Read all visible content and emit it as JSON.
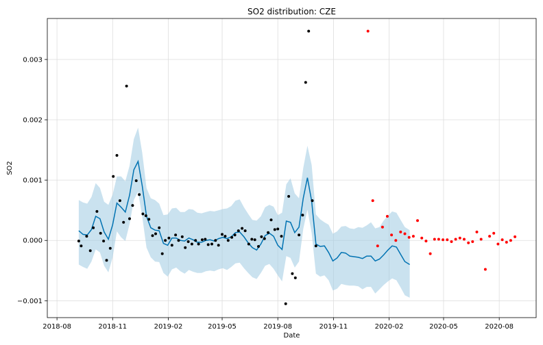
{
  "chart_data": {
    "type": "scatter",
    "title": "SO2 distribution: CZE",
    "xlabel": "Date",
    "ylabel": "SO2",
    "x_ticks": [
      "2018-08",
      "2018-11",
      "2019-02",
      "2019-05",
      "2019-08",
      "2019-11",
      "2020-02",
      "2020-05",
      "2020-08"
    ],
    "y_ticks": [
      "−0.001",
      "0.000",
      "0.001",
      "0.002",
      "0.003"
    ],
    "xlim": [
      "2018-07-16",
      "2020-10-01"
    ],
    "ylim": [
      -0.00128,
      0.00368
    ],
    "grid": true,
    "colors": {
      "observed": "#000000",
      "held_out": "#ff0000",
      "forecast": "#0072B2",
      "interval": "#9ecae1"
    },
    "series": [
      {
        "role": "observed",
        "points": [
          [
            "2018-09-06",
            -1e-05
          ],
          [
            "2018-09-10",
            -9e-05
          ],
          [
            "2018-09-19",
            7e-05
          ],
          [
            "2018-09-25",
            -0.00017
          ],
          [
            "2018-09-30",
            0.00021
          ],
          [
            "2018-10-06",
            0.00048
          ],
          [
            "2018-10-12",
            0.00012
          ],
          [
            "2018-10-17",
            -1e-05
          ],
          [
            "2018-10-22",
            -0.00033
          ],
          [
            "2018-10-28",
            -0.00013
          ],
          [
            "2018-11-02",
            0.00106
          ],
          [
            "2018-11-08",
            0.00141
          ],
          [
            "2018-11-13",
            0.00066
          ],
          [
            "2018-11-19",
            0.0003
          ],
          [
            "2018-11-24",
            0.00256
          ],
          [
            "2018-11-29",
            0.00036
          ],
          [
            "2018-12-04",
            0.00058
          ],
          [
            "2018-12-10",
            0.00099
          ],
          [
            "2018-12-15",
            0.00076
          ],
          [
            "2018-12-21",
            0.00044
          ],
          [
            "2018-12-26",
            0.00041
          ],
          [
            "2018-12-31",
            0.00035
          ],
          [
            "2019-01-06",
            8e-05
          ],
          [
            "2019-01-11",
            0.00011
          ],
          [
            "2019-01-17",
            0.00021
          ],
          [
            "2019-01-22",
            -0.00022
          ],
          [
            "2019-01-27",
            0.0
          ],
          [
            "2019-02-02",
            4e-05
          ],
          [
            "2019-02-07",
            -8e-05
          ],
          [
            "2019-02-13",
            9e-05
          ],
          [
            "2019-02-18",
            0.0
          ],
          [
            "2019-02-24",
            6e-05
          ],
          [
            "2019-03-01",
            -0.00012
          ],
          [
            "2019-03-06",
            -2e-05
          ],
          [
            "2019-03-12",
            -6e-05
          ],
          [
            "2019-03-18",
            0.0
          ],
          [
            "2019-03-23",
            -6e-05
          ],
          [
            "2019-03-29",
            1e-05
          ],
          [
            "2019-04-03",
            2e-05
          ],
          [
            "2019-04-08",
            -7e-05
          ],
          [
            "2019-04-14",
            -6e-05
          ],
          [
            "2019-04-20",
            0.0
          ],
          [
            "2019-04-25",
            -8e-05
          ],
          [
            "2019-05-01",
            0.0001
          ],
          [
            "2019-05-06",
            7e-05
          ],
          [
            "2019-05-11",
            0.0
          ],
          [
            "2019-05-17",
            5e-05
          ],
          [
            "2019-05-22",
            9e-05
          ],
          [
            "2019-05-28",
            0.00016
          ],
          [
            "2019-06-03",
            0.0002
          ],
          [
            "2019-06-08",
            0.00016
          ],
          [
            "2019-06-14",
            -6e-05
          ],
          [
            "2019-06-19",
            2e-05
          ],
          [
            "2019-06-24",
            1e-05
          ],
          [
            "2019-06-30",
            -0.0001
          ],
          [
            "2019-07-05",
            6e-05
          ],
          [
            "2019-07-10",
            3e-05
          ],
          [
            "2019-07-16",
            0.00013
          ],
          [
            "2019-07-21",
            0.00034
          ],
          [
            "2019-07-27",
            0.00018
          ],
          [
            "2019-08-01",
            0.00019
          ],
          [
            "2019-08-07",
            7e-05
          ],
          [
            "2019-08-14",
            -0.00105
          ],
          [
            "2019-08-19",
            0.00073
          ],
          [
            "2019-08-25",
            -0.00055
          ],
          [
            "2019-08-30",
            -0.00062
          ],
          [
            "2019-09-05",
            9e-05
          ],
          [
            "2019-09-11",
            0.00042
          ],
          [
            "2019-09-16",
            0.00262
          ],
          [
            "2019-09-21",
            0.00347
          ],
          [
            "2019-09-27",
            0.00066
          ],
          [
            "2019-10-03",
            -9e-05
          ]
        ]
      },
      {
        "role": "held_out",
        "points": [
          [
            "2019-12-28",
            0.00347
          ],
          [
            "2020-01-05",
            0.00066
          ],
          [
            "2020-01-13",
            -9e-05
          ],
          [
            "2020-01-21",
            0.00022
          ],
          [
            "2020-01-29",
            0.0004
          ],
          [
            "2020-02-05",
            9e-05
          ],
          [
            "2020-02-12",
            0.0
          ],
          [
            "2020-02-20",
            0.00014
          ],
          [
            "2020-02-27",
            0.00011
          ],
          [
            "2020-03-05",
            5e-05
          ],
          [
            "2020-03-12",
            7e-05
          ],
          [
            "2020-03-19",
            0.00033
          ],
          [
            "2020-03-26",
            4e-05
          ],
          [
            "2020-04-02",
            -1e-05
          ],
          [
            "2020-04-09",
            -0.00022
          ],
          [
            "2020-04-16",
            2e-05
          ],
          [
            "2020-04-23",
            2e-05
          ],
          [
            "2020-04-30",
            1e-05
          ],
          [
            "2020-05-07",
            1e-05
          ],
          [
            "2020-05-14",
            -2e-05
          ],
          [
            "2020-05-21",
            2e-05
          ],
          [
            "2020-05-28",
            4e-05
          ],
          [
            "2020-06-04",
            2e-05
          ],
          [
            "2020-06-11",
            -4e-05
          ],
          [
            "2020-06-18",
            -2e-05
          ],
          [
            "2020-06-25",
            0.00014
          ],
          [
            "2020-07-02",
            2e-05
          ],
          [
            "2020-07-09",
            -0.00048
          ],
          [
            "2020-07-16",
            7e-05
          ],
          [
            "2020-07-23",
            0.00012
          ],
          [
            "2020-07-30",
            -6e-05
          ],
          [
            "2020-08-06",
            1e-05
          ],
          [
            "2020-08-13",
            -3e-05
          ],
          [
            "2020-08-20",
            0.0
          ],
          [
            "2020-08-27",
            6e-05
          ]
        ]
      },
      {
        "role": "forecast",
        "points": [
          [
            "2018-09-06",
            0.00016
          ],
          [
            "2018-09-13",
            0.0001
          ],
          [
            "2018-09-20",
            9e-05
          ],
          [
            "2018-09-27",
            0.00018
          ],
          [
            "2018-10-04",
            0.0004
          ],
          [
            "2018-10-11",
            0.00036
          ],
          [
            "2018-10-18",
            0.00014
          ],
          [
            "2018-10-25",
            2e-05
          ],
          [
            "2018-11-01",
            0.00026
          ],
          [
            "2018-11-08",
            0.00062
          ],
          [
            "2018-11-15",
            0.00055
          ],
          [
            "2018-11-22",
            0.00047
          ],
          [
            "2018-11-29",
            0.00075
          ],
          [
            "2018-12-06",
            0.00117
          ],
          [
            "2018-12-13",
            0.00131
          ],
          [
            "2018-12-20",
            0.0009
          ],
          [
            "2018-12-27",
            0.0004
          ],
          [
            "2019-01-03",
            0.00021
          ],
          [
            "2019-01-10",
            0.00017
          ],
          [
            "2019-01-17",
            0.00016
          ],
          [
            "2019-01-24",
            -5e-05
          ],
          [
            "2019-01-31",
            -8e-05
          ],
          [
            "2019-02-07",
            4e-05
          ],
          [
            "2019-02-14",
            4e-05
          ],
          [
            "2019-02-21",
            0.0
          ],
          [
            "2019-02-28",
            -1e-05
          ],
          [
            "2019-03-07",
            4e-05
          ],
          [
            "2019-03-14",
            1e-05
          ],
          [
            "2019-03-21",
            -3e-05
          ],
          [
            "2019-03-28",
            -3e-05
          ],
          [
            "2019-04-04",
            0.0
          ],
          [
            "2019-04-11",
            1e-05
          ],
          [
            "2019-04-18",
            -1e-05
          ],
          [
            "2019-04-25",
            3e-05
          ],
          [
            "2019-05-02",
            5e-05
          ],
          [
            "2019-05-09",
            3e-05
          ],
          [
            "2019-05-16",
            6e-05
          ],
          [
            "2019-05-23",
            0.00013
          ],
          [
            "2019-05-30",
            0.00014
          ],
          [
            "2019-06-06",
            6e-05
          ],
          [
            "2019-06-13",
            -4e-05
          ],
          [
            "2019-06-20",
            -0.00012
          ],
          [
            "2019-06-27",
            -0.00016
          ],
          [
            "2019-07-04",
            -6e-05
          ],
          [
            "2019-07-11",
            8e-05
          ],
          [
            "2019-07-18",
            0.00012
          ],
          [
            "2019-07-25",
            7e-05
          ],
          [
            "2019-08-01",
            -8e-05
          ],
          [
            "2019-08-08",
            -0.00015
          ],
          [
            "2019-08-15",
            0.00032
          ],
          [
            "2019-08-22",
            0.0003
          ],
          [
            "2019-08-29",
            0.00013
          ],
          [
            "2019-09-05",
            0.00022
          ],
          [
            "2019-09-12",
            0.0007
          ],
          [
            "2019-09-19",
            0.00104
          ],
          [
            "2019-09-26",
            0.00065
          ],
          [
            "2019-10-03",
            -6e-05
          ],
          [
            "2019-10-10",
            -0.0001
          ],
          [
            "2019-10-17",
            -9e-05
          ],
          [
            "2019-10-24",
            -0.0002
          ],
          [
            "2019-10-31",
            -0.00034
          ],
          [
            "2019-11-07",
            -0.00029
          ],
          [
            "2019-11-14",
            -0.0002
          ],
          [
            "2019-11-21",
            -0.00021
          ],
          [
            "2019-11-28",
            -0.00026
          ],
          [
            "2019-12-05",
            -0.00027
          ],
          [
            "2019-12-12",
            -0.00028
          ],
          [
            "2019-12-19",
            -0.0003
          ],
          [
            "2019-12-26",
            -0.00026
          ],
          [
            "2020-01-02",
            -0.00026
          ],
          [
            "2020-01-09",
            -0.00034
          ],
          [
            "2020-01-16",
            -0.00031
          ],
          [
            "2020-01-23",
            -0.00024
          ],
          [
            "2020-01-30",
            -0.00016
          ],
          [
            "2020-02-06",
            -9e-05
          ],
          [
            "2020-02-13",
            -0.00011
          ],
          [
            "2020-02-20",
            -0.00023
          ],
          [
            "2020-02-27",
            -0.00035
          ],
          [
            "2020-03-06",
            -0.0004
          ]
        ]
      }
    ],
    "interval": {
      "role": "interval",
      "upper": [
        0.00067,
        0.00063,
        0.00061,
        0.00072,
        0.00095,
        0.00087,
        0.00064,
        0.00059,
        0.00076,
        0.00106,
        0.00106,
        0.00098,
        0.00124,
        0.00168,
        0.00187,
        0.00145,
        0.00087,
        0.0007,
        0.00067,
        0.00061,
        0.00042,
        0.00043,
        0.00053,
        0.00054,
        0.00047,
        0.00047,
        0.00052,
        0.00051,
        0.00046,
        0.00045,
        0.00047,
        0.00049,
        0.00048,
        0.0005,
        0.00052,
        0.00053,
        0.00057,
        0.00066,
        0.00068,
        0.00055,
        0.00044,
        0.00034,
        0.00033,
        0.0004,
        0.00055,
        0.00059,
        0.00056,
        0.00042,
        0.00046,
        0.00093,
        0.00103,
        0.00078,
        0.0007,
        0.0012,
        0.00157,
        0.00125,
        0.00043,
        0.00035,
        0.0003,
        0.00026,
        0.00011,
        0.00015,
        0.00023,
        0.00024,
        0.0002,
        0.00019,
        0.00022,
        0.00021,
        0.00025,
        0.0003,
        0.0002,
        0.00022,
        0.00033,
        0.00041,
        0.00048,
        0.00046,
        0.00034,
        0.00022,
        0.00017
      ],
      "lower": [
        -0.0004,
        -0.00044,
        -0.00047,
        -0.00035,
        -0.00015,
        -0.0002,
        -0.00042,
        -0.00053,
        -0.00028,
        0.00015,
        5e-05,
        -1e-05,
        0.00027,
        0.00067,
        0.00081,
        0.00039,
        -0.00012,
        -0.00028,
        -0.00035,
        -0.00036,
        -0.00054,
        -0.0006,
        -0.00048,
        -0.00045,
        -0.00051,
        -0.00055,
        -0.00049,
        -0.00052,
        -0.00054,
        -0.00054,
        -0.00051,
        -0.0005,
        -0.00051,
        -0.00048,
        -0.00046,
        -0.00049,
        -0.00044,
        -0.00038,
        -0.00037,
        -0.00046,
        -0.00054,
        -0.00061,
        -0.00064,
        -0.00054,
        -0.00042,
        -0.00039,
        -0.00047,
        -0.00058,
        -0.00068,
        -0.00026,
        -0.00029,
        -0.00045,
        -0.00035,
        0.00019,
        0.00051,
        0.00012,
        -0.00055,
        -0.0006,
        -0.00058,
        -0.00066,
        -0.00083,
        -0.0008,
        -0.00072,
        -0.00074,
        -0.00075,
        -0.00075,
        -0.00076,
        -0.00081,
        -0.00077,
        -0.00077,
        -0.00088,
        -0.00081,
        -0.00074,
        -0.00068,
        -0.00063,
        -0.00066,
        -0.00078,
        -0.00091,
        -0.00095
      ]
    }
  }
}
